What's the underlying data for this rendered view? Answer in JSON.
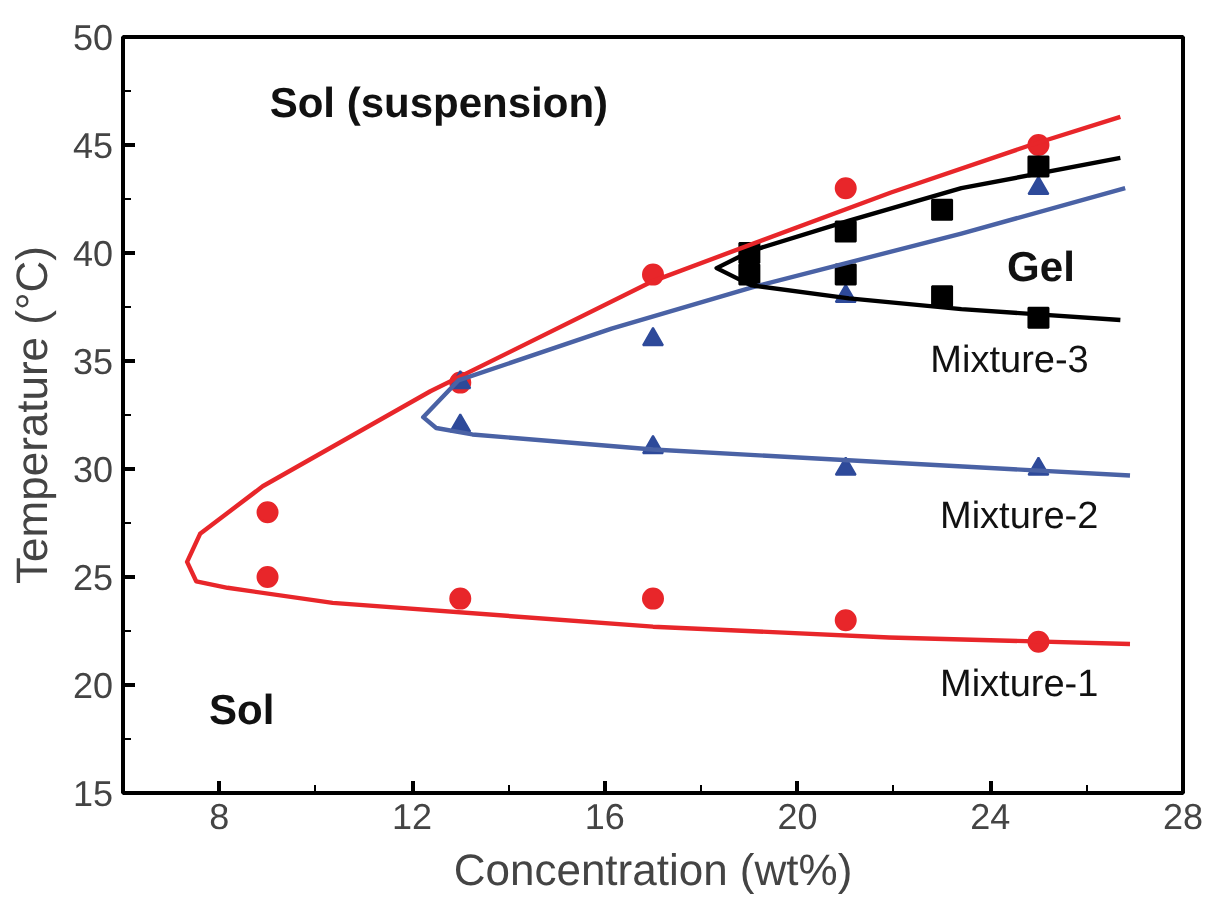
{
  "chart_data": {
    "type": "scatter",
    "xlabel": "Concentration (wt%)",
    "ylabel": "Temperature (°C)",
    "xlim": [
      6,
      28
    ],
    "ylim": [
      15,
      50
    ],
    "xticks": [
      8,
      12,
      16,
      20,
      24,
      28
    ],
    "yticks": [
      15,
      20,
      25,
      30,
      35,
      40,
      45,
      50
    ],
    "grid": false,
    "legend": false,
    "series": [
      {
        "marker": "circle",
        "color": "#e8262a",
        "x": [
          9,
          9,
          13,
          13,
          17,
          17,
          21,
          21,
          25,
          25
        ],
        "values": [
          28,
          25,
          24,
          34,
          39,
          24,
          43,
          23,
          45,
          22
        ]
      },
      {
        "marker": "triangle",
        "color": "#2e4a9a",
        "x": [
          13,
          13,
          17,
          17,
          21,
          21,
          25,
          25
        ],
        "values": [
          34,
          32,
          36,
          31,
          38,
          30,
          43,
          30
        ]
      },
      {
        "marker": "square",
        "color": "#000000",
        "x": [
          19,
          19,
          21,
          21,
          23,
          23,
          25,
          25
        ],
        "values": [
          40,
          39,
          41,
          39,
          42,
          38,
          44,
          37
        ]
      },
      {
        "type": "line",
        "name": "Mixture-1",
        "marker": "none",
        "color": "#e8262a",
        "x": [
          26.7,
          24.84,
          21.94,
          19.04,
          17.0,
          12.38,
          8.9,
          7.6,
          7.33,
          7.52,
          8.17,
          10.35,
          17.0,
          21.9,
          26.9
        ],
        "values": [
          46.3,
          45.0,
          42.8,
          40.4,
          38.7,
          33.6,
          29.2,
          27.0,
          25.7,
          24.8,
          24.5,
          23.8,
          22.7,
          22.2,
          21.9
        ]
      },
      {
        "type": "line",
        "name": "Mixture-2",
        "marker": "none",
        "color": "#4a62a5",
        "x": [
          26.8,
          23.4,
          19.04,
          16.14,
          12.96,
          12.23,
          12.5,
          13.25,
          17.0,
          21.9,
          26.9
        ],
        "values": [
          43.0,
          40.9,
          38.4,
          36.5,
          34.1,
          32.4,
          31.9,
          31.6,
          30.9,
          30.3,
          29.7
        ]
      },
      {
        "type": "line",
        "name": "Mixture-3",
        "marker": "none",
        "color": "#000000",
        "x": [
          26.7,
          23.4,
          21.07,
          19.04,
          18.32,
          19.04,
          21.07,
          23.4,
          26.7
        ],
        "values": [
          44.4,
          43.0,
          41.5,
          40.1,
          39.3,
          38.5,
          37.9,
          37.4,
          36.9
        ]
      }
    ],
    "annotations": [
      "Sol (suspension)",
      "Sol",
      "Gel"
    ]
  }
}
